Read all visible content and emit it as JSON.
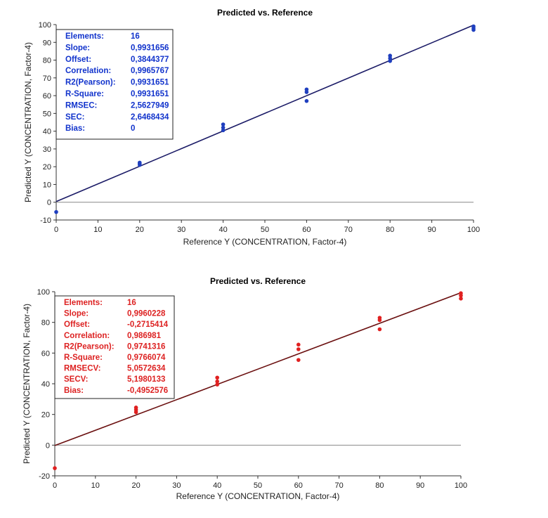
{
  "chart_data": [
    {
      "type": "scatter",
      "title": "Predicted vs. Reference",
      "xlabel": "Reference Y (CONCENTRATION, Factor-4)",
      "ylabel": "Predicted Y (CONCENTRATION, Factor-4)",
      "xlim": [
        0,
        100
      ],
      "ylim": [
        -10,
        100
      ],
      "xticks": [
        0,
        10,
        20,
        30,
        40,
        50,
        60,
        70,
        80,
        90,
        100
      ],
      "yticks": [
        -10,
        0,
        10,
        20,
        30,
        40,
        50,
        60,
        70,
        80,
        90,
        100
      ],
      "color": "#1f3fbf",
      "line_color": "#1a1a66",
      "regression": {
        "slope": 0.9931656,
        "offset": 0.3844377
      },
      "points": [
        {
          "x": 0,
          "y": -5.5
        },
        {
          "x": 20,
          "y": 21
        },
        {
          "x": 20,
          "y": 21.8
        },
        {
          "x": 20,
          "y": 22.3
        },
        {
          "x": 40,
          "y": 40.5
        },
        {
          "x": 40,
          "y": 42
        },
        {
          "x": 40,
          "y": 43.8
        },
        {
          "x": 60,
          "y": 57
        },
        {
          "x": 60,
          "y": 62
        },
        {
          "x": 60,
          "y": 63.5
        },
        {
          "x": 80,
          "y": 79.5
        },
        {
          "x": 80,
          "y": 81
        },
        {
          "x": 80,
          "y": 82.5
        },
        {
          "x": 100,
          "y": 97
        },
        {
          "x": 100,
          "y": 98
        },
        {
          "x": 100,
          "y": 99
        }
      ],
      "stats": [
        {
          "label": "Elements:",
          "value": "16"
        },
        {
          "label": "Slope:",
          "value": "0,9931656"
        },
        {
          "label": "Offset:",
          "value": "0,3844377"
        },
        {
          "label": "Correlation:",
          "value": "0,9965767"
        },
        {
          "label": "R2(Pearson):",
          "value": "0,9931651"
        },
        {
          "label": "R-Square:",
          "value": "0,9931651"
        },
        {
          "label": "RMSEC:",
          "value": "2,5627949"
        },
        {
          "label": "SEC:",
          "value": "2,6468434"
        },
        {
          "label": "Bias:",
          "value": "0"
        }
      ]
    },
    {
      "type": "scatter",
      "title": "Predicted vs. Reference",
      "xlabel": "Reference Y (CONCENTRATION, Factor-4)",
      "ylabel": "Predicted Y (CONCENTRATION, Factor-4)",
      "xlim": [
        0,
        100
      ],
      "ylim": [
        -20,
        100
      ],
      "xticks": [
        0,
        10,
        20,
        30,
        40,
        50,
        60,
        70,
        80,
        90,
        100
      ],
      "yticks": [
        -20,
        0,
        20,
        40,
        60,
        80,
        100
      ],
      "color": "#e02020",
      "line_color": "#6b1010",
      "regression": {
        "slope": 0.9960228,
        "offset": -0.2715414
      },
      "points": [
        {
          "x": 0,
          "y": -15
        },
        {
          "x": 20,
          "y": 21.5
        },
        {
          "x": 20,
          "y": 23
        },
        {
          "x": 20,
          "y": 24.5
        },
        {
          "x": 40,
          "y": 39.5
        },
        {
          "x": 40,
          "y": 41.5
        },
        {
          "x": 40,
          "y": 44
        },
        {
          "x": 60,
          "y": 55.5
        },
        {
          "x": 60,
          "y": 62.5
        },
        {
          "x": 60,
          "y": 65.5
        },
        {
          "x": 80,
          "y": 75.5
        },
        {
          "x": 80,
          "y": 81.5
        },
        {
          "x": 80,
          "y": 83
        },
        {
          "x": 100,
          "y": 95.5
        },
        {
          "x": 100,
          "y": 97.5
        },
        {
          "x": 100,
          "y": 99
        }
      ],
      "stats": [
        {
          "label": "Elements:",
          "value": "16"
        },
        {
          "label": "Slope:",
          "value": "0,9960228"
        },
        {
          "label": "Offset:",
          "value": "-0,2715414"
        },
        {
          "label": "Correlation:",
          "value": "0,986981"
        },
        {
          "label": "R2(Pearson):",
          "value": "0,9741316"
        },
        {
          "label": "R-Square:",
          "value": "0,9766074"
        },
        {
          "label": "RMSECV:",
          "value": "5,0572634"
        },
        {
          "label": "SECV:",
          "value": "5,1980133"
        },
        {
          "label": "Bias:",
          "value": "-0,4952576"
        }
      ]
    }
  ]
}
